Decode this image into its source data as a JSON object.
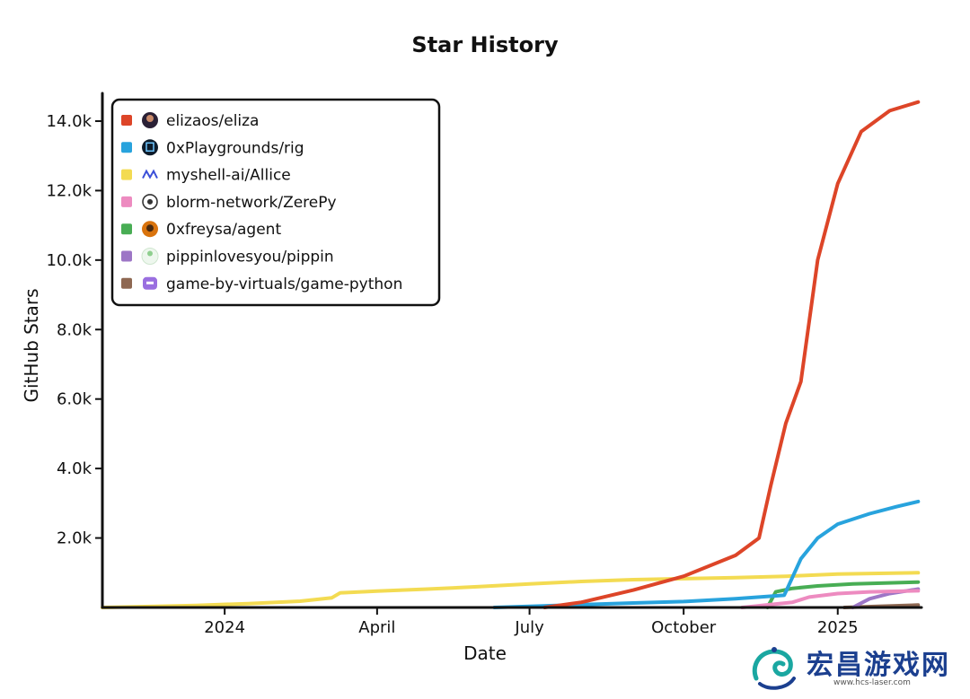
{
  "chart_data": {
    "type": "line",
    "title": "Star History",
    "xlabel": "Date",
    "ylabel": "GitHub Stars",
    "x_ticks": [
      "2024",
      "April",
      "July",
      "October",
      "2025"
    ],
    "x_tick_dates": [
      "2024-01-01",
      "2024-04-01",
      "2024-07-01",
      "2024-10-01",
      "2025-01-01"
    ],
    "x_range": [
      "2023-10-20",
      "2025-02-20"
    ],
    "y_ticks": [
      "2.0k",
      "4.0k",
      "6.0k",
      "8.0k",
      "10.0k",
      "12.0k",
      "14.0k"
    ],
    "y_tick_values": [
      2000,
      4000,
      6000,
      8000,
      10000,
      12000,
      14000
    ],
    "ylim": [
      0,
      14800
    ],
    "grid": false,
    "legend_position": "top-left",
    "series": [
      {
        "name": "elizaos/eliza",
        "color": "#dd4528",
        "icon": "eliza-avatar-icon",
        "points": [
          [
            "2024-07-10",
            0
          ],
          [
            "2024-08-01",
            150
          ],
          [
            "2024-09-01",
            500
          ],
          [
            "2024-10-01",
            900
          ],
          [
            "2024-11-01",
            1500
          ],
          [
            "2024-11-15",
            2000
          ],
          [
            "2024-11-22",
            3500
          ],
          [
            "2024-12-01",
            5300
          ],
          [
            "2024-12-10",
            6500
          ],
          [
            "2024-12-20",
            10000
          ],
          [
            "2025-01-01",
            12200
          ],
          [
            "2025-01-15",
            13700
          ],
          [
            "2025-02-01",
            14300
          ],
          [
            "2025-02-18",
            14550
          ]
        ]
      },
      {
        "name": "0xPlaygrounds/rig",
        "color": "#28a3dd",
        "icon": "rig-logo-icon",
        "points": [
          [
            "2024-06-10",
            0
          ],
          [
            "2024-07-01",
            30
          ],
          [
            "2024-08-01",
            80
          ],
          [
            "2024-09-01",
            130
          ],
          [
            "2024-10-01",
            170
          ],
          [
            "2024-11-01",
            250
          ],
          [
            "2024-11-30",
            350
          ],
          [
            "2024-12-01",
            450
          ],
          [
            "2024-12-10",
            1400
          ],
          [
            "2024-12-20",
            2000
          ],
          [
            "2025-01-01",
            2400
          ],
          [
            "2025-01-20",
            2700
          ],
          [
            "2025-02-05",
            2900
          ],
          [
            "2025-02-18",
            3050
          ]
        ]
      },
      {
        "name": "myshell-ai/Allice",
        "color": "#f3db52",
        "icon": "myshell-logo-icon",
        "points": [
          [
            "2023-10-20",
            0
          ],
          [
            "2023-12-15",
            60
          ],
          [
            "2024-01-15",
            110
          ],
          [
            "2024-02-15",
            180
          ],
          [
            "2024-03-05",
            280
          ],
          [
            "2024-03-10",
            420
          ],
          [
            "2024-04-01",
            470
          ],
          [
            "2024-05-01",
            530
          ],
          [
            "2024-06-01",
            600
          ],
          [
            "2024-07-01",
            680
          ],
          [
            "2024-08-01",
            750
          ],
          [
            "2024-09-01",
            800
          ],
          [
            "2024-10-01",
            830
          ],
          [
            "2024-11-01",
            860
          ],
          [
            "2024-12-01",
            900
          ],
          [
            "2025-01-01",
            960
          ],
          [
            "2025-02-18",
            1000
          ]
        ]
      },
      {
        "name": "blorm-network/ZerePy",
        "color": "#ed8bc0",
        "icon": "zerepy-logo-icon",
        "points": [
          [
            "2024-11-05",
            0
          ],
          [
            "2024-12-05",
            150
          ],
          [
            "2024-12-15",
            300
          ],
          [
            "2025-01-01",
            400
          ],
          [
            "2025-01-20",
            450
          ],
          [
            "2025-02-18",
            480
          ]
        ]
      },
      {
        "name": "0xfreysa/agent",
        "color": "#48ad54",
        "icon": "freysa-avatar-icon",
        "points": [
          [
            "2024-11-20",
            0
          ],
          [
            "2024-11-25",
            450
          ],
          [
            "2024-12-05",
            550
          ],
          [
            "2024-12-20",
            620
          ],
          [
            "2025-01-10",
            680
          ],
          [
            "2025-02-18",
            730
          ]
        ]
      },
      {
        "name": "pippinlovesyou/pippin",
        "color": "#9d76c6",
        "icon": "pippin-logo-icon",
        "points": [
          [
            "2025-01-10",
            0
          ],
          [
            "2025-01-20",
            250
          ],
          [
            "2025-02-01",
            400
          ],
          [
            "2025-02-18",
            530
          ]
        ]
      },
      {
        "name": "game-by-virtuals/game-python",
        "color": "#8e6852",
        "icon": "game-python-logo-icon",
        "points": [
          [
            "2025-01-05",
            0
          ],
          [
            "2025-01-25",
            30
          ],
          [
            "2025-02-18",
            70
          ]
        ]
      }
    ]
  },
  "watermark": {
    "text": "宏昌游戏网",
    "url": "www.hcs-laser.com"
  }
}
